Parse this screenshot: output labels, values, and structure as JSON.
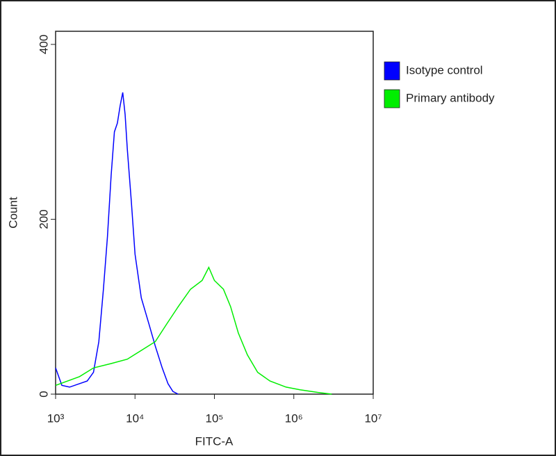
{
  "chart_data": {
    "type": "line",
    "xlabel": "FITC-A",
    "ylabel": "Count",
    "xscale": "log",
    "xlim": [
      1000,
      10000000
    ],
    "xticks": [
      {
        "value": 1000,
        "label": "10³"
      },
      {
        "value": 10000,
        "label": "10⁴"
      },
      {
        "value": 100000,
        "label": "10⁵"
      },
      {
        "value": 1000000,
        "label": "10⁶"
      },
      {
        "value": 10000000,
        "label": "10⁷"
      }
    ],
    "ylim": [
      0,
      415
    ],
    "yticks": [
      0,
      200,
      400
    ],
    "legend": "right",
    "series": [
      {
        "name": "Isotype control",
        "color": "#0000ff",
        "x": [
          1000,
          1200,
          1500,
          2000,
          2500,
          3000,
          3500,
          4000,
          4500,
          5000,
          5500,
          6000,
          6500,
          7000,
          7500,
          8000,
          9000,
          10000,
          12000,
          15000,
          18000,
          22000,
          26000,
          30000,
          35000
        ],
        "values": [
          30,
          10,
          8,
          12,
          15,
          25,
          60,
          120,
          180,
          250,
          300,
          310,
          330,
          345,
          320,
          280,
          220,
          160,
          110,
          80,
          55,
          30,
          12,
          3,
          0
        ]
      },
      {
        "name": "Primary antibody",
        "color": "#00ee00",
        "x": [
          1000,
          2000,
          3000,
          5000,
          8000,
          12000,
          18000,
          25000,
          35000,
          50000,
          70000,
          85000,
          100000,
          130000,
          160000,
          200000,
          260000,
          350000,
          500000,
          800000,
          1200000,
          2000000,
          3000000
        ],
        "values": [
          10,
          20,
          30,
          35,
          40,
          50,
          60,
          80,
          100,
          120,
          130,
          145,
          130,
          120,
          100,
          70,
          45,
          25,
          15,
          8,
          5,
          2,
          0
        ]
      }
    ]
  }
}
